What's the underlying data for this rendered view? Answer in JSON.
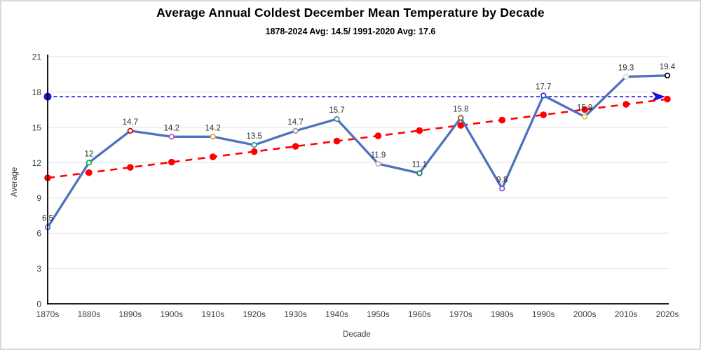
{
  "title": "Average Annual Coldest December Mean Temperature by Decade",
  "subtitle": "1878-2024 Avg: 14.5/ 1991-2020 Avg: 17.6",
  "chart_data": {
    "type": "line",
    "title": "Average Annual Coldest December Mean Temperature by Decade",
    "subtitle": "1878-2024 Avg: 14.5/ 1991-2020 Avg: 17.6",
    "xlabel": "Decade",
    "ylabel": "Average",
    "ylim": [
      0,
      21
    ],
    "yticks": [
      0,
      3,
      6,
      9,
      12,
      15,
      18,
      21
    ],
    "grid": "horizontal",
    "legend": "none",
    "categories": [
      "1870s",
      "1880s",
      "1890s",
      "1900s",
      "1910s",
      "1920s",
      "1930s",
      "1940s",
      "1950s",
      "1960s",
      "1970s",
      "1980s",
      "1990s",
      "2000s",
      "2010s",
      "2020s"
    ],
    "series": [
      {
        "name": "decade-average",
        "type": "line-with-markers",
        "line_color": "#4f71be",
        "values": [
          6.5,
          12,
          14.7,
          14.2,
          14.2,
          13.5,
          14.7,
          15.7,
          11.9,
          11.1,
          15.8,
          9.8,
          17.7,
          15.9,
          19.3,
          19.4
        ],
        "labels": [
          "6.5",
          "12",
          "14.7",
          "14.2",
          "14.2",
          "13.5",
          "14.7",
          "15.7",
          "11.9",
          "11.1",
          "15.8",
          "9.8",
          "17.7",
          "15.9",
          "19.3",
          "19.4"
        ],
        "marker_colors": [
          "#4472c4",
          "#00b050",
          "#c00000",
          "#c44fc4",
          "#e8992e",
          "#18a7a7",
          "#9b9b9b",
          "#40888f",
          "#d9a3ae",
          "#1f6f60",
          "#8e4b21",
          "#7a52c9",
          "#2139d6",
          "#c9c95a",
          "#d8d8e8",
          "#000000"
        ]
      },
      {
        "name": "linear-trend",
        "type": "dashed-line-with-markers",
        "color": "#fe0000",
        "endpoints": [
          10.7,
          17.4
        ]
      },
      {
        "name": "reference-average-1991-2020",
        "type": "dashed-horizontal-line-with-arrow",
        "color": "#1515d8",
        "value": 17.6
      }
    ]
  }
}
